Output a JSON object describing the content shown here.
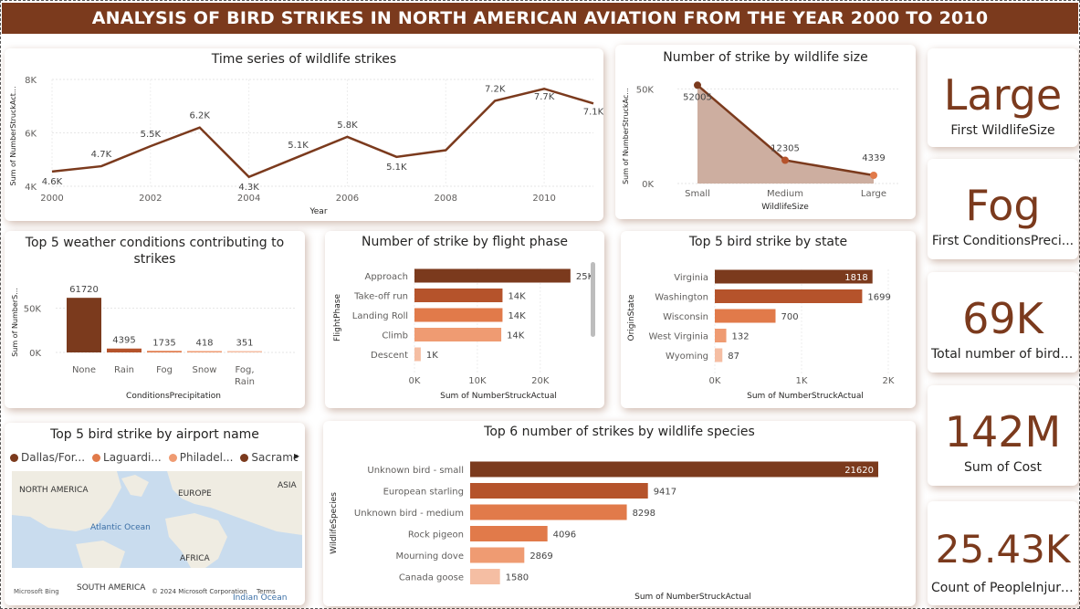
{
  "title": "ANALYSIS OF BIRD STRIKES IN NORTH AMERICAN AVIATION FROM THE YEAR 2000 TO 2010",
  "colors": {
    "brand": "#7b3a1d",
    "bar1": "#7b3a1d",
    "bar2": "#b5532b",
    "bar3": "#e17a4a",
    "bar4": "#ef9b72",
    "bar5": "#f5bea3",
    "area": "#c8a596"
  },
  "kpis": [
    {
      "value": "Large",
      "label": "First WildlifeSize"
    },
    {
      "value": "Fog",
      "label": "First ConditionsPreci..."
    },
    {
      "value": "69K",
      "label": "Total number of bird ..."
    },
    {
      "value": "142M",
      "label": "Sum of Cost"
    },
    {
      "value": "25.43K",
      "label": "Count of PeopleInjured"
    }
  ],
  "map": {
    "title": "Top 5 bird strike by airport name",
    "legend": [
      {
        "label": "Dallas/For...",
        "color": "#7b3a1d"
      },
      {
        "label": "Laguardi...",
        "color": "#e17a4a"
      },
      {
        "label": "Philadel...",
        "color": "#ef9b72"
      },
      {
        "label": "Sacrame...",
        "color": "#7b3a1d"
      }
    ],
    "legend_arrow": "▸",
    "labels": {
      "north_america": "NORTH AMERICA",
      "europe": "EUROPE",
      "asia": "ASIA",
      "atlantic": "Atlantic Ocean",
      "africa": "AFRICA",
      "south_america": "SOUTH AMERICA",
      "indian": "Indian Ocean",
      "bing": "Microsoft Bing",
      "copyright": "© 2024 Microsoft Corporation",
      "terms": "Terms"
    }
  },
  "chart_data": [
    {
      "id": "time-series",
      "type": "line",
      "title": "Time series of wildlife strikes",
      "xlabel": "Year",
      "ylabel": "Sum of NumberStruckAct...",
      "x": [
        2000,
        2001,
        2002,
        2003,
        2004,
        2005,
        2006,
        2007,
        2008,
        2009,
        2010,
        2011
      ],
      "values": [
        4550,
        4750,
        5500,
        6200,
        4350,
        5100,
        5850,
        5100,
        5350,
        7200,
        7650,
        7100
      ],
      "data_labels": [
        "4.6K",
        "4.7K",
        "5.5K",
        "6.2K",
        "4.3K",
        "5.1K",
        "5.8K",
        "5.1K",
        "",
        "7.2K",
        "7.7K",
        "7.1K"
      ],
      "xticks": [
        "2000",
        "2002",
        "2004",
        "2006",
        "2008",
        "2010"
      ],
      "yticks": [
        "4K",
        "6K",
        "8K"
      ],
      "ylim": [
        4000,
        8000
      ],
      "grid": true
    },
    {
      "id": "wildlife-size",
      "type": "area",
      "title": "Number of strike by wildlife size",
      "xlabel": "WildlifeSize",
      "ylabel": "Sum of NumberStruckAc...",
      "categories": [
        "Small",
        "Medium",
        "Large"
      ],
      "values": [
        52005,
        12305,
        4339
      ],
      "data_labels": [
        "52005",
        "12305",
        "4339"
      ],
      "yticks": [
        "0K",
        "50K"
      ],
      "ylim": [
        0,
        56000
      ]
    },
    {
      "id": "weather",
      "type": "bar",
      "title": "Top 5 weather conditions contributing to strikes",
      "xlabel": "ConditionsPrecipitation",
      "ylabel": "Sum of NumberS...",
      "categories": [
        "None",
        "Rain",
        "Fog",
        "Snow",
        "Fog,\nRain"
      ],
      "values": [
        61720,
        4395,
        1735,
        418,
        351
      ],
      "data_labels": [
        "61720",
        "4395",
        "1735",
        "418",
        "351"
      ],
      "yticks": [
        "0K",
        "50K"
      ],
      "ylim": [
        0,
        65000
      ]
    },
    {
      "id": "flight-phase",
      "type": "bar",
      "orientation": "horizontal",
      "title": "Number of strike by flight phase",
      "xlabel": "Sum of NumberStruckActual",
      "ylabel": "FlightPhase",
      "categories": [
        "Approach",
        "Take-off run",
        "Landing Roll",
        "Climb",
        "Descent"
      ],
      "values": [
        24800,
        14000,
        14000,
        13800,
        1000
      ],
      "data_labels": [
        "25K",
        "14K",
        "14K",
        "14K",
        "1K"
      ],
      "xticks": [
        "0K",
        "10K",
        "20K"
      ],
      "xlim": [
        0,
        27000
      ]
    },
    {
      "id": "state",
      "type": "bar",
      "orientation": "horizontal",
      "title": "Top 5 bird strike by state",
      "xlabel": "Sum of NumberStruckActual",
      "ylabel": "OriginState",
      "categories": [
        "Virginia",
        "Washington",
        "Wisconsin",
        "West Virginia",
        "Wyoming"
      ],
      "values": [
        1818,
        1699,
        700,
        132,
        87
      ],
      "data_labels": [
        "1818",
        "1699",
        "700",
        "132",
        "87"
      ],
      "xticks": [
        "0K",
        "1K",
        "2K"
      ],
      "xlim": [
        0,
        2000
      ]
    },
    {
      "id": "species",
      "type": "bar",
      "orientation": "horizontal",
      "title": "Top 6 number of strikes by wildlife species",
      "xlabel": "Sum of NumberStruckActual",
      "ylabel": "WildlifeSpecies",
      "categories": [
        "Unknown bird - small",
        "European starling",
        "Unknown bird - medium",
        "Rock pigeon",
        "Mourning dove",
        "Canada goose"
      ],
      "values": [
        21620,
        9417,
        8298,
        4096,
        2869,
        1580
      ],
      "data_labels": [
        "21620",
        "9417",
        "8298",
        "4096",
        "2869",
        "1580"
      ],
      "xlim": [
        0,
        21620
      ]
    }
  ]
}
